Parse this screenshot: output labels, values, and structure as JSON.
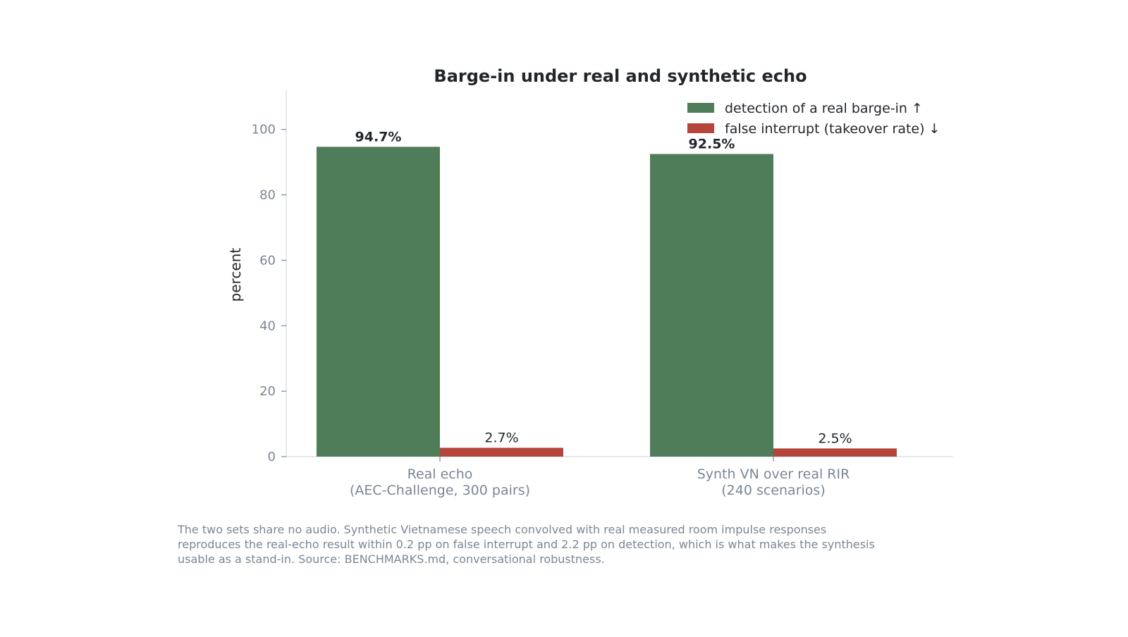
{
  "chart_data": {
    "type": "bar",
    "title": "Barge-in under real and synthetic echo",
    "xlabel": "",
    "ylabel": "percent",
    "ylim": [
      0,
      112
    ],
    "yticks": [
      0,
      20,
      40,
      60,
      80,
      100
    ],
    "grid": false,
    "legend_position": "top-right",
    "categories": [
      [
        "Real echo",
        "(AEC-Challenge, 300 pairs)"
      ],
      [
        "Synth VN over real RIR",
        "(240 scenarios)"
      ]
    ],
    "series": [
      {
        "name": "detection of a real barge-in ↑",
        "color": "#4f7d5a",
        "values": [
          94.7,
          92.5
        ],
        "labels": [
          "94.7%",
          "92.5%"
        ],
        "label_weight": "bold"
      },
      {
        "name": "false interrupt (takeover rate) ↓",
        "color": "#b5443b",
        "values": [
          2.7,
          2.5
        ],
        "labels": [
          "2.7%",
          "2.5%"
        ],
        "label_weight": "normal"
      }
    ]
  },
  "caption": "The two sets share no audio. Synthetic Vietnamese speech convolved with real measured room impulse responses reproduces the real-echo result within 0.2 pp on false interrupt and 2.2 pp on detection, which is what makes the synthesis usable as a stand-in. Source: BENCHMARKS.md, conversational robustness."
}
